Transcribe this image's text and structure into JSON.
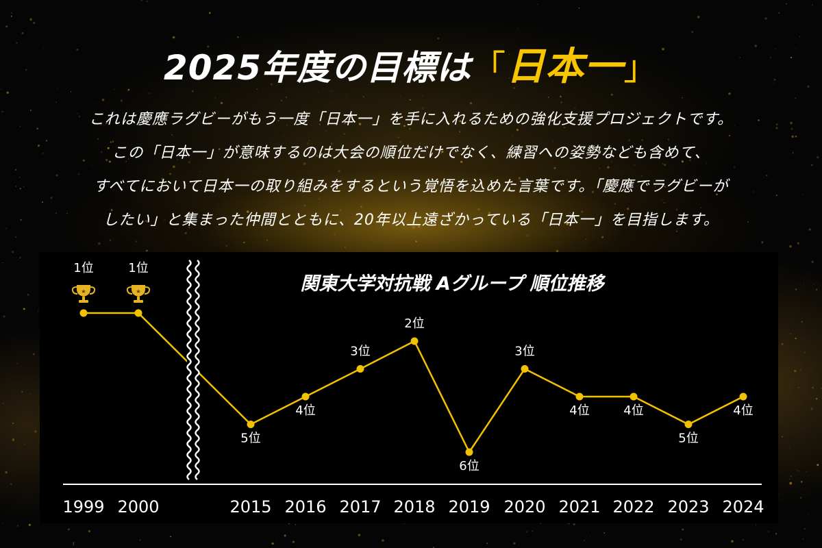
{
  "header": {
    "title_prefix": "2025年度の目標は",
    "title_open": "「",
    "title_highlight": "日本一",
    "title_close": "」"
  },
  "description": [
    "これは慶應ラグビーがもう一度「日本一」を手に入れるための強化支援プロジェクトです。",
    "この「日本一」が意味するのは大会の順位だけでなく、練習への姿勢なども含めて、",
    "すべてにおいて日本一の取り組みをするという覚悟を込めた言葉です。「慶應でラグビーが",
    "したい」と集まった仲間とともに、20年以上遠ざかっている「日本一」を目指します。"
  ],
  "colors": {
    "accent": "#f7c600",
    "line": "#f2c100",
    "background": "#050505"
  },
  "chart_data": {
    "type": "line",
    "title": "関東大学対抗戦 Aグループ 順位推移",
    "categories": [
      "1999",
      "2000",
      "2015",
      "2016",
      "2017",
      "2018",
      "2019",
      "2020",
      "2021",
      "2022",
      "2023",
      "2024"
    ],
    "values": [
      1,
      1,
      5,
      4,
      3,
      2,
      6,
      3,
      4,
      4,
      5,
      4
    ],
    "labels": [
      "1位",
      "1位",
      "5位",
      "4位",
      "3位",
      "2位",
      "6位",
      "3位",
      "4位",
      "4位",
      "5位",
      "4位"
    ],
    "y_inverted": true,
    "axis_break_between": [
      "2000",
      "2015"
    ],
    "trophy_icon": "trophy-icon"
  }
}
